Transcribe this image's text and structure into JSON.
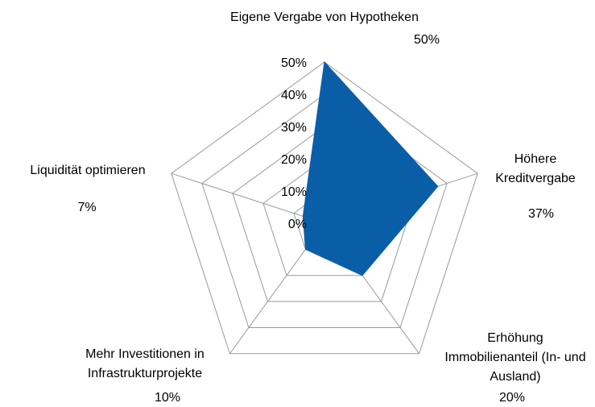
{
  "chart_data": {
    "type": "radar",
    "categories": [
      "Eigene Vergabe von Hypotheken",
      "Höhere Kreditvergabe",
      "Erhöhung Immobilienanteil (In- und Ausland)",
      "Mehr Investitionen in Infrastrukturprojekte",
      "Liquidität optimieren"
    ],
    "values": [
      50,
      37,
      20,
      10,
      7
    ],
    "value_labels": [
      "50%",
      "37%",
      "20%",
      "10%",
      "7%"
    ],
    "color": "#0a5ea8",
    "ylim": [
      0,
      50
    ],
    "yticks": [
      {
        "value": 0,
        "label": "0%"
      },
      {
        "value": 10,
        "label": "10%"
      },
      {
        "value": 20,
        "label": "20%"
      },
      {
        "value": 30,
        "label": "30%"
      },
      {
        "value": 40,
        "label": "40%"
      },
      {
        "value": 50,
        "label": "50%"
      }
    ],
    "grid": true
  }
}
